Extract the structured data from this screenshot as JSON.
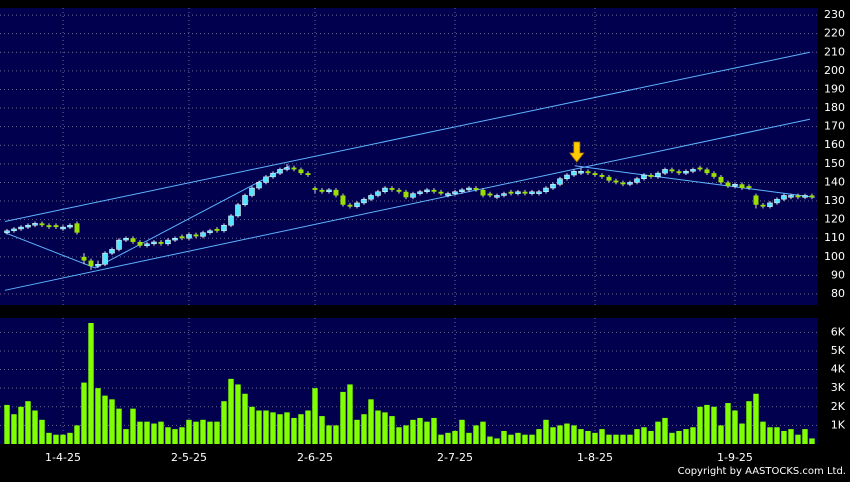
{
  "chart_data": [
    {
      "type": "candlestick",
      "xlim": [
        -1,
        115.86
      ],
      "ylim": [
        74.1,
        233.8
      ],
      "yticks": [
        80,
        90,
        100,
        110,
        120,
        130,
        140,
        150,
        160,
        170,
        180,
        190,
        200,
        210,
        220,
        230
      ],
      "grid": true,
      "up_color": "#55e6ff",
      "down_color": "#99e000",
      "trendline_color": "#5fb4ff",
      "open": [
        113,
        114,
        115,
        116,
        117,
        118,
        117,
        117,
        115,
        116,
        118,
        100,
        98,
        95,
        96,
        102,
        104,
        109,
        110,
        108,
        106,
        107,
        108,
        107,
        109,
        111,
        110,
        112,
        111,
        113,
        115,
        114,
        117,
        122,
        128,
        133,
        137,
        140,
        143,
        145,
        147,
        148,
        147,
        145,
        137,
        136,
        135,
        136,
        133,
        128,
        127,
        129,
        131,
        133,
        135,
        137,
        136,
        135,
        132,
        134,
        135,
        136,
        135,
        133,
        134,
        135,
        136,
        137,
        136,
        134,
        132,
        133,
        135,
        134,
        135,
        134,
        134,
        135,
        137,
        139,
        142,
        144,
        145,
        146,
        145,
        144,
        143,
        141,
        140,
        139,
        140,
        142,
        144,
        143,
        145,
        147,
        146,
        145,
        146,
        148,
        147,
        145,
        143,
        140,
        138,
        139,
        138,
        133,
        128,
        127,
        129,
        131,
        132,
        133,
        132,
        133
      ],
      "high": [
        115,
        116,
        117,
        118,
        119,
        119,
        118,
        118,
        117,
        118,
        119,
        102,
        99,
        98,
        103,
        105,
        110,
        111,
        111,
        109,
        108,
        109,
        109,
        110,
        111,
        112,
        113,
        113,
        114,
        115,
        116,
        118,
        123,
        129,
        134,
        138,
        141,
        144,
        146,
        148,
        150,
        149,
        148,
        146,
        138,
        137,
        137,
        137,
        134,
        129,
        130,
        132,
        134,
        136,
        138,
        138,
        137,
        136,
        135,
        136,
        137,
        137,
        136,
        135,
        136,
        137,
        138,
        138,
        137,
        135,
        134,
        135,
        136,
        136,
        136,
        136,
        136,
        138,
        140,
        143,
        145,
        147,
        148,
        147,
        146,
        145,
        144,
        142,
        141,
        141,
        143,
        145,
        145,
        146,
        148,
        148,
        147,
        147,
        148,
        149,
        148,
        146,
        144,
        141,
        140,
        140,
        139,
        134,
        129,
        130,
        132,
        134,
        134,
        134,
        134,
        134
      ],
      "low": [
        112,
        113,
        114,
        115,
        116,
        116,
        115,
        115,
        114,
        115,
        112,
        96,
        93,
        94,
        95,
        101,
        103,
        108,
        107,
        105,
        105,
        106,
        106,
        106,
        108,
        109,
        109,
        110,
        110,
        112,
        113,
        113,
        116,
        121,
        127,
        132,
        136,
        139,
        142,
        144,
        146,
        146,
        144,
        143,
        134,
        134,
        134,
        132,
        127,
        126,
        126,
        128,
        130,
        132,
        134,
        135,
        134,
        131,
        131,
        133,
        134,
        134,
        133,
        132,
        133,
        134,
        135,
        135,
        132,
        132,
        131,
        132,
        133,
        133,
        133,
        133,
        133,
        134,
        136,
        138,
        141,
        143,
        144,
        144,
        143,
        142,
        140,
        139,
        138,
        138,
        139,
        141,
        142,
        142,
        144,
        145,
        144,
        144,
        145,
        146,
        144,
        142,
        139,
        137,
        137,
        136,
        136,
        126,
        126,
        126,
        128,
        130,
        131,
        131,
        131,
        131
      ],
      "close": [
        114,
        115,
        116,
        117,
        118,
        117,
        116,
        116,
        116,
        117,
        113,
        98,
        95,
        96,
        102,
        104,
        109,
        110,
        108,
        106,
        107,
        108,
        107,
        109,
        110,
        110,
        112,
        111,
        113,
        114,
        114,
        117,
        122,
        128,
        133,
        137,
        140,
        143,
        145,
        147,
        148,
        147,
        145,
        144,
        136,
        135,
        136,
        133,
        128,
        127,
        129,
        131,
        133,
        135,
        137,
        136,
        135,
        132,
        134,
        135,
        136,
        135,
        134,
        134,
        135,
        136,
        137,
        136,
        133,
        133,
        133,
        134,
        134,
        135,
        134,
        135,
        135,
        137,
        139,
        142,
        144,
        146,
        146,
        145,
        144,
        143,
        141,
        140,
        139,
        140,
        142,
        144,
        143,
        145,
        147,
        146,
        145,
        146,
        147,
        147,
        145,
        143,
        140,
        138,
        139,
        137,
        137,
        128,
        127,
        129,
        131,
        133,
        133,
        132,
        133,
        132
      ],
      "trendlines": [
        {
          "x": [
            -0.3,
            12.6,
            40.4
          ],
          "y": [
            113,
            94,
            149
          ]
        },
        {
          "x": [
            -0.3,
            114.7
          ],
          "y": [
            119,
            210
          ]
        },
        {
          "x": [
            -0.3,
            114.7
          ],
          "y": [
            82,
            174
          ]
        },
        {
          "x": [
            81.1,
            91.1,
            115.4
          ],
          "y": [
            149,
            144,
            132
          ]
        }
      ],
      "arrow": {
        "x": 81.4,
        "price": 151,
        "color": "#ffcc00"
      }
    },
    {
      "type": "bar",
      "xlim": [
        -1,
        115.86
      ],
      "ylim": [
        0,
        6770
      ],
      "color": "#80ff00",
      "grid": true,
      "yticks": [
        {
          "value": 1000,
          "label": "1K"
        },
        {
          "value": 2000,
          "label": "2K"
        },
        {
          "value": 3000,
          "label": "3K"
        },
        {
          "value": 4000,
          "label": "4K"
        },
        {
          "value": 5000,
          "label": "5K"
        },
        {
          "value": 6000,
          "label": "6K"
        }
      ],
      "xticks": [
        {
          "value": 8,
          "label": "1-4-25"
        },
        {
          "value": 26,
          "label": "2-5-25"
        },
        {
          "value": 44,
          "label": "2-6-25"
        },
        {
          "value": 64,
          "label": "2-7-25"
        },
        {
          "value": 84,
          "label": "1-8-25"
        },
        {
          "value": 104,
          "label": "1-9-25"
        }
      ],
      "values": [
        2100,
        1600,
        2000,
        2300,
        1800,
        1300,
        600,
        500,
        500,
        600,
        1000,
        3300,
        6500,
        3000,
        2600,
        2400,
        1900,
        800,
        1900,
        1200,
        1200,
        1100,
        1200,
        900,
        800,
        900,
        1300,
        1200,
        1300,
        1200,
        1200,
        2300,
        3500,
        3200,
        2700,
        2000,
        1800,
        1800,
        1700,
        1600,
        1700,
        1400,
        1600,
        1800,
        3000,
        1500,
        1000,
        1000,
        2800,
        3200,
        1300,
        1600,
        2400,
        1800,
        1700,
        1500,
        900,
        1000,
        1300,
        1400,
        1200,
        1400,
        500,
        600,
        700,
        1300,
        600,
        1000,
        1200,
        400,
        300,
        700,
        500,
        600,
        500,
        500,
        800,
        1300,
        900,
        1000,
        1100,
        1000,
        800,
        700,
        600,
        800,
        500,
        500,
        500,
        500,
        800,
        900,
        700,
        1200,
        1400,
        600,
        700,
        800,
        900,
        2000,
        2100,
        2000,
        1000,
        2200,
        1800,
        1100,
        2300,
        2700,
        1200,
        900,
        900,
        700,
        800,
        500,
        800,
        300
      ]
    }
  ],
  "copyright": "Copyright by AASTOCKS.com Ltd."
}
